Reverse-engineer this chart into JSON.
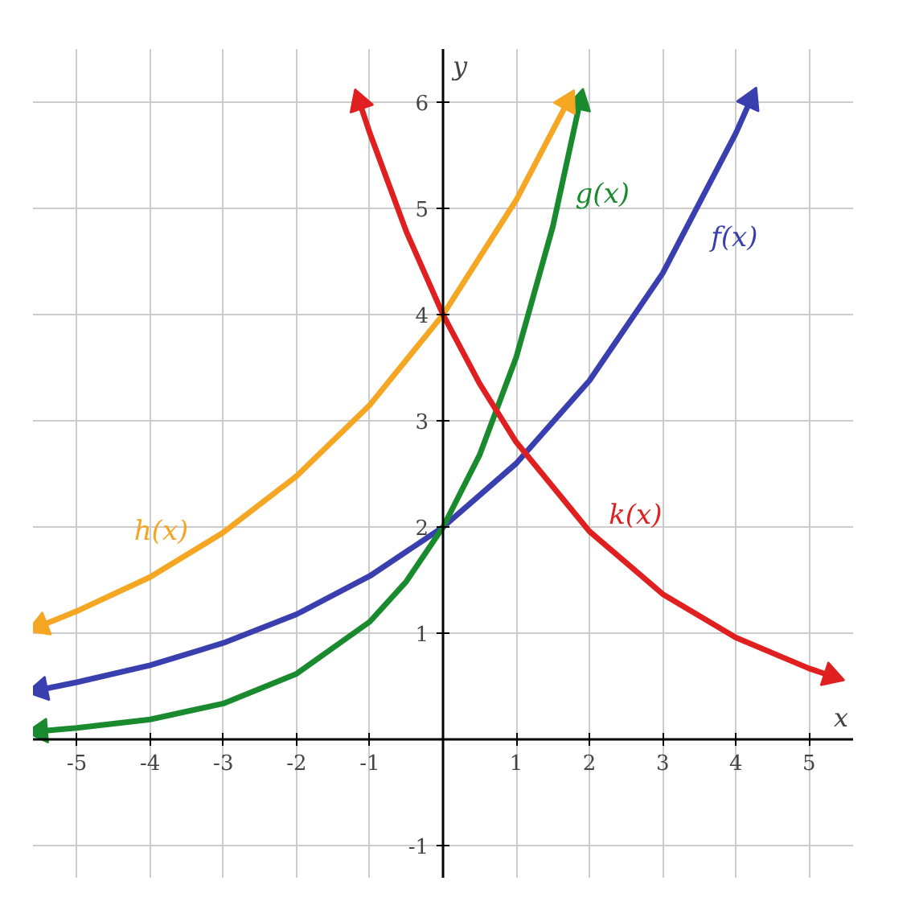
{
  "chart_data": {
    "type": "line",
    "xlabel": "x",
    "ylabel": "y",
    "xlim": [
      -5.6,
      5.6
    ],
    "ylim": [
      -1.3,
      6.5
    ],
    "xticks": [
      -5,
      -4,
      -3,
      -2,
      -1,
      1,
      2,
      3,
      4,
      5
    ],
    "yticks": [
      -1,
      1,
      2,
      3,
      4,
      5,
      6
    ],
    "grid": true,
    "marker": "none",
    "line_style": "solid",
    "series": [
      {
        "name": "f(x)",
        "color": "#3a3fb0",
        "x": [
          -5.5,
          -5,
          -4,
          -3,
          -2,
          -1,
          0,
          1,
          2,
          3,
          4,
          4.2
        ],
        "values": [
          0.47,
          0.54,
          0.7,
          0.91,
          1.18,
          1.54,
          2,
          2.6,
          3.38,
          4.39,
          5.71,
          6.02
        ]
      },
      {
        "name": "g(x)",
        "color": "#1a8a2e",
        "x": [
          -5.5,
          -5,
          -4,
          -3,
          -2,
          -1,
          -0.5,
          0,
          0.5,
          1,
          1.5,
          1.87
        ],
        "values": [
          0.08,
          0.11,
          0.19,
          0.34,
          0.62,
          1.11,
          1.49,
          2,
          2.68,
          3.6,
          4.83,
          6
        ]
      },
      {
        "name": "h(x)",
        "color": "#f5a623",
        "x": [
          -5.5,
          -5,
          -4,
          -3,
          -2,
          -1,
          0,
          1,
          1.7
        ],
        "values": [
          1.07,
          1.21,
          1.53,
          1.95,
          2.48,
          3.15,
          4,
          5.08,
          6
        ]
      },
      {
        "name": "k(x)",
        "color": "#e02020",
        "x": [
          -1.14,
          -1,
          -0.5,
          0,
          0.5,
          1,
          2,
          3,
          4,
          5,
          5.3
        ],
        "values": [
          6,
          5.71,
          4.78,
          4,
          3.35,
          2.8,
          1.96,
          1.37,
          0.96,
          0.67,
          0.6
        ]
      }
    ]
  }
}
